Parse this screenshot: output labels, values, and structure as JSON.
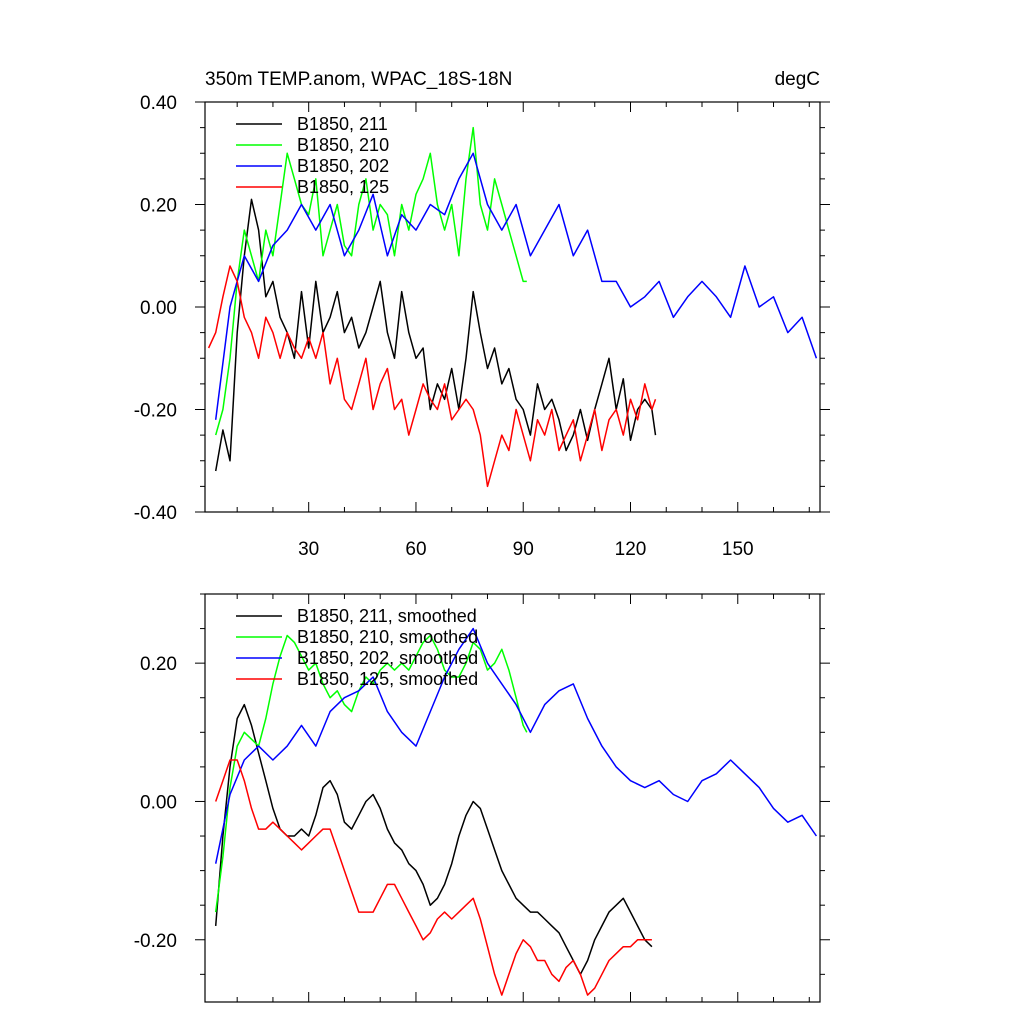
{
  "chart_data": [
    {
      "type": "line",
      "title": "350m TEMP.anom, WPAC_18S-18N",
      "units": "degC",
      "xlim": [
        1,
        173
      ],
      "ylim": [
        -0.4,
        0.4
      ],
      "xticks": [
        30,
        60,
        90,
        120,
        150
      ],
      "yticks": [
        -0.4,
        -0.2,
        0.0,
        0.2,
        0.4
      ],
      "ytick_labels": [
        "-0.40",
        "-0.20",
        "0.00",
        "0.20",
        "0.40"
      ],
      "legend_position": "top-left",
      "series": [
        {
          "name": "B1850, 211",
          "color": "#000000",
          "x": [
            4,
            6,
            8,
            10,
            12,
            14,
            16,
            18,
            20,
            22,
            24,
            26,
            28,
            30,
            32,
            34,
            36,
            38,
            40,
            42,
            44,
            46,
            48,
            50,
            52,
            54,
            56,
            58,
            60,
            62,
            64,
            66,
            68,
            70,
            72,
            74,
            76,
            78,
            80,
            82,
            84,
            86,
            88,
            90,
            92,
            94,
            96,
            98,
            100,
            102,
            104,
            106,
            108,
            110,
            112,
            114,
            116,
            118,
            120,
            122,
            124,
            126,
            127
          ],
          "y": [
            -0.32,
            -0.24,
            -0.3,
            -0.05,
            0.1,
            0.21,
            0.15,
            0.02,
            0.05,
            -0.02,
            -0.05,
            -0.1,
            0.03,
            -0.08,
            0.05,
            -0.05,
            -0.02,
            0.03,
            -0.05,
            -0.02,
            -0.08,
            -0.05,
            0.0,
            0.05,
            -0.05,
            -0.1,
            0.03,
            -0.05,
            -0.1,
            -0.08,
            -0.2,
            -0.15,
            -0.18,
            -0.12,
            -0.2,
            -0.1,
            0.03,
            -0.05,
            -0.12,
            -0.08,
            -0.15,
            -0.12,
            -0.18,
            -0.2,
            -0.25,
            -0.15,
            -0.2,
            -0.18,
            -0.22,
            -0.28,
            -0.25,
            -0.2,
            -0.26,
            -0.2,
            -0.15,
            -0.1,
            -0.2,
            -0.14,
            -0.26,
            -0.2,
            -0.18,
            -0.2,
            -0.25
          ]
        },
        {
          "name": "B1850, 210",
          "color": "#00ff00",
          "x": [
            4,
            6,
            8,
            10,
            12,
            14,
            16,
            18,
            20,
            22,
            24,
            26,
            28,
            30,
            32,
            34,
            36,
            38,
            40,
            42,
            44,
            46,
            48,
            50,
            52,
            54,
            56,
            58,
            60,
            62,
            64,
            66,
            68,
            70,
            72,
            74,
            76,
            78,
            80,
            82,
            84,
            86,
            88,
            90,
            91
          ],
          "y": [
            -0.25,
            -0.2,
            -0.1,
            0.05,
            0.15,
            0.1,
            0.05,
            0.15,
            0.1,
            0.2,
            0.3,
            0.25,
            0.2,
            0.18,
            0.25,
            0.1,
            0.15,
            0.2,
            0.12,
            0.1,
            0.2,
            0.25,
            0.15,
            0.2,
            0.18,
            0.1,
            0.2,
            0.15,
            0.22,
            0.25,
            0.3,
            0.2,
            0.15,
            0.2,
            0.1,
            0.25,
            0.35,
            0.2,
            0.15,
            0.25,
            0.2,
            0.15,
            0.1,
            0.05,
            0.05
          ]
        },
        {
          "name": "B1850, 202",
          "color": "#0000ff",
          "x": [
            4,
            8,
            12,
            16,
            20,
            24,
            28,
            32,
            36,
            40,
            44,
            48,
            52,
            56,
            60,
            64,
            68,
            72,
            76,
            80,
            84,
            88,
            92,
            96,
            100,
            104,
            108,
            112,
            116,
            120,
            124,
            128,
            132,
            136,
            140,
            144,
            148,
            152,
            156,
            160,
            164,
            168,
            172
          ],
          "y": [
            -0.22,
            0.0,
            0.1,
            0.05,
            0.12,
            0.15,
            0.2,
            0.15,
            0.2,
            0.1,
            0.15,
            0.22,
            0.1,
            0.18,
            0.15,
            0.2,
            0.18,
            0.25,
            0.3,
            0.2,
            0.15,
            0.2,
            0.1,
            0.15,
            0.2,
            0.1,
            0.15,
            0.05,
            0.05,
            0.0,
            0.02,
            0.05,
            -0.02,
            0.02,
            0.05,
            0.02,
            -0.02,
            0.08,
            0.0,
            0.02,
            -0.05,
            -0.02,
            -0.1
          ]
        },
        {
          "name": "B1850, 125",
          "color": "#ff0000",
          "x": [
            2,
            4,
            6,
            8,
            10,
            12,
            14,
            16,
            18,
            20,
            22,
            24,
            26,
            28,
            30,
            32,
            34,
            36,
            38,
            40,
            42,
            44,
            46,
            48,
            50,
            52,
            54,
            56,
            58,
            60,
            62,
            64,
            66,
            68,
            70,
            72,
            74,
            76,
            78,
            80,
            82,
            84,
            86,
            88,
            90,
            92,
            94,
            96,
            98,
            100,
            102,
            104,
            106,
            108,
            110,
            112,
            114,
            116,
            118,
            120,
            122,
            124,
            126,
            127
          ],
          "y": [
            -0.08,
            -0.05,
            0.02,
            0.08,
            0.05,
            -0.02,
            -0.05,
            -0.1,
            -0.02,
            -0.05,
            -0.1,
            -0.05,
            -0.08,
            -0.1,
            -0.06,
            -0.1,
            -0.05,
            -0.15,
            -0.1,
            -0.18,
            -0.2,
            -0.15,
            -0.1,
            -0.2,
            -0.15,
            -0.12,
            -0.2,
            -0.18,
            -0.25,
            -0.2,
            -0.15,
            -0.18,
            -0.2,
            -0.15,
            -0.22,
            -0.2,
            -0.18,
            -0.2,
            -0.25,
            -0.35,
            -0.3,
            -0.25,
            -0.28,
            -0.2,
            -0.25,
            -0.3,
            -0.22,
            -0.25,
            -0.2,
            -0.28,
            -0.25,
            -0.22,
            -0.3,
            -0.25,
            -0.2,
            -0.28,
            -0.22,
            -0.2,
            -0.25,
            -0.18,
            -0.22,
            -0.15,
            -0.2,
            -0.18
          ]
        }
      ]
    },
    {
      "type": "line",
      "title": "",
      "xlim": [
        1,
        173
      ],
      "ylim": [
        -0.29,
        0.3
      ],
      "xticks": [
        30,
        60,
        90,
        120,
        150
      ],
      "yticks": [
        -0.2,
        0.0,
        0.2
      ],
      "ytick_labels": [
        "-0.20",
        "0.00",
        "0.20"
      ],
      "legend_position": "top-left",
      "series": [
        {
          "name": "B1850, 211, smoothed",
          "color": "#000000",
          "x": [
            4,
            6,
            8,
            10,
            12,
            14,
            16,
            18,
            20,
            22,
            24,
            26,
            28,
            30,
            32,
            34,
            36,
            38,
            40,
            42,
            44,
            46,
            48,
            50,
            52,
            54,
            56,
            58,
            60,
            62,
            64,
            66,
            68,
            70,
            72,
            74,
            76,
            78,
            80,
            82,
            84,
            86,
            88,
            90,
            92,
            94,
            96,
            98,
            100,
            102,
            104,
            106,
            108,
            110,
            112,
            114,
            116,
            118,
            120,
            122,
            124,
            126
          ],
          "y": [
            -0.18,
            -0.05,
            0.05,
            0.12,
            0.14,
            0.11,
            0.07,
            0.03,
            -0.01,
            -0.04,
            -0.05,
            -0.05,
            -0.04,
            -0.05,
            -0.02,
            0.02,
            0.03,
            0.01,
            -0.03,
            -0.04,
            -0.02,
            0.0,
            0.01,
            -0.01,
            -0.04,
            -0.06,
            -0.07,
            -0.09,
            -0.1,
            -0.12,
            -0.15,
            -0.14,
            -0.12,
            -0.09,
            -0.05,
            -0.02,
            0.0,
            -0.01,
            -0.04,
            -0.07,
            -0.1,
            -0.12,
            -0.14,
            -0.15,
            -0.16,
            -0.16,
            -0.17,
            -0.18,
            -0.19,
            -0.21,
            -0.23,
            -0.25,
            -0.23,
            -0.2,
            -0.18,
            -0.16,
            -0.15,
            -0.14,
            -0.16,
            -0.18,
            -0.2,
            -0.21
          ]
        },
        {
          "name": "B1850, 210, smoothed",
          "color": "#00ff00",
          "x": [
            4,
            6,
            8,
            10,
            12,
            14,
            16,
            18,
            20,
            22,
            24,
            26,
            28,
            30,
            32,
            34,
            36,
            38,
            40,
            42,
            44,
            46,
            48,
            50,
            52,
            54,
            56,
            58,
            60,
            62,
            64,
            66,
            68,
            70,
            72,
            74,
            76,
            78,
            80,
            82,
            84,
            86,
            88,
            90,
            91
          ],
          "y": [
            -0.16,
            -0.08,
            0.02,
            0.08,
            0.1,
            0.09,
            0.08,
            0.12,
            0.17,
            0.21,
            0.24,
            0.23,
            0.21,
            0.19,
            0.2,
            0.17,
            0.15,
            0.16,
            0.14,
            0.13,
            0.16,
            0.18,
            0.17,
            0.19,
            0.2,
            0.19,
            0.2,
            0.19,
            0.21,
            0.23,
            0.24,
            0.22,
            0.19,
            0.18,
            0.18,
            0.2,
            0.23,
            0.22,
            0.19,
            0.2,
            0.22,
            0.19,
            0.15,
            0.11,
            0.1
          ]
        },
        {
          "name": "B1850, 202, smoothed",
          "color": "#0000ff",
          "x": [
            4,
            8,
            12,
            16,
            20,
            24,
            28,
            32,
            36,
            40,
            44,
            48,
            52,
            56,
            60,
            64,
            68,
            72,
            76,
            80,
            84,
            88,
            92,
            96,
            100,
            104,
            108,
            112,
            116,
            120,
            124,
            128,
            132,
            136,
            140,
            144,
            148,
            152,
            156,
            160,
            164,
            168,
            172
          ],
          "y": [
            -0.09,
            0.01,
            0.06,
            0.08,
            0.06,
            0.08,
            0.11,
            0.08,
            0.13,
            0.15,
            0.16,
            0.18,
            0.13,
            0.1,
            0.08,
            0.13,
            0.18,
            0.22,
            0.25,
            0.2,
            0.17,
            0.14,
            0.1,
            0.14,
            0.16,
            0.17,
            0.12,
            0.08,
            0.05,
            0.03,
            0.02,
            0.03,
            0.01,
            0.0,
            0.03,
            0.04,
            0.06,
            0.04,
            0.02,
            -0.01,
            -0.03,
            -0.02,
            -0.05
          ]
        },
        {
          "name": "B1850, 125, smoothed",
          "color": "#ff0000",
          "x": [
            4,
            6,
            8,
            10,
            12,
            14,
            16,
            18,
            20,
            22,
            24,
            26,
            28,
            30,
            32,
            34,
            36,
            38,
            40,
            42,
            44,
            46,
            48,
            50,
            52,
            54,
            56,
            58,
            60,
            62,
            64,
            66,
            68,
            70,
            72,
            74,
            76,
            78,
            80,
            82,
            84,
            86,
            88,
            90,
            92,
            94,
            96,
            98,
            100,
            102,
            104,
            106,
            108,
            110,
            112,
            114,
            116,
            118,
            120,
            122,
            124,
            126
          ],
          "y": [
            0.0,
            0.03,
            0.06,
            0.06,
            0.03,
            -0.01,
            -0.04,
            -0.04,
            -0.03,
            -0.04,
            -0.05,
            -0.06,
            -0.07,
            -0.06,
            -0.05,
            -0.04,
            -0.04,
            -0.07,
            -0.1,
            -0.13,
            -0.16,
            -0.16,
            -0.16,
            -0.14,
            -0.12,
            -0.12,
            -0.14,
            -0.16,
            -0.18,
            -0.2,
            -0.19,
            -0.17,
            -0.16,
            -0.17,
            -0.16,
            -0.15,
            -0.14,
            -0.17,
            -0.21,
            -0.25,
            -0.28,
            -0.25,
            -0.22,
            -0.2,
            -0.21,
            -0.23,
            -0.23,
            -0.25,
            -0.26,
            -0.24,
            -0.23,
            -0.25,
            -0.28,
            -0.27,
            -0.25,
            -0.23,
            -0.22,
            -0.21,
            -0.21,
            -0.2,
            -0.2,
            -0.2
          ]
        }
      ]
    }
  ]
}
